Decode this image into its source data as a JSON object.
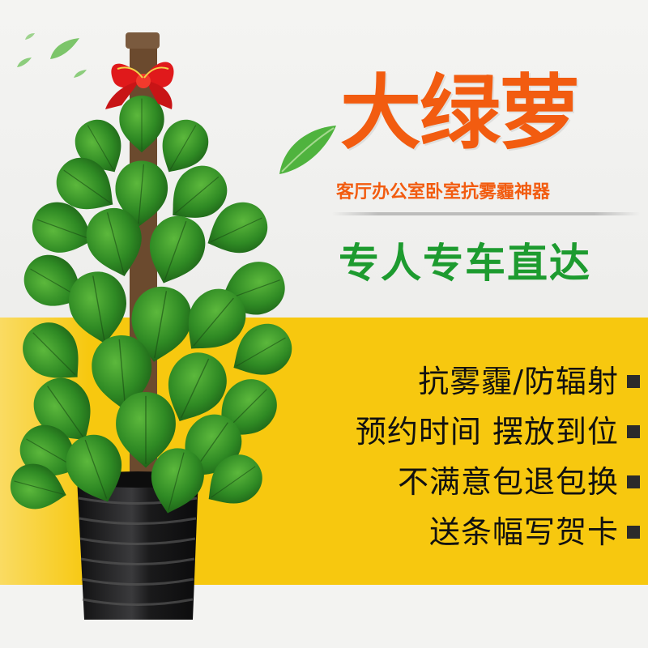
{
  "product": {
    "title": "大绿萝",
    "subtitle": "客厅办公室卧室抗雾霾神器",
    "slogan": "专人专车直达"
  },
  "features": [
    "抗雾霾/防辐射",
    "预约时间 摆放到位",
    "不满意包退包换",
    "送条幅写贺卡"
  ],
  "colors": {
    "title": "#f25c10",
    "slogan": "#1d9b2f",
    "band": "#f7c80f"
  }
}
